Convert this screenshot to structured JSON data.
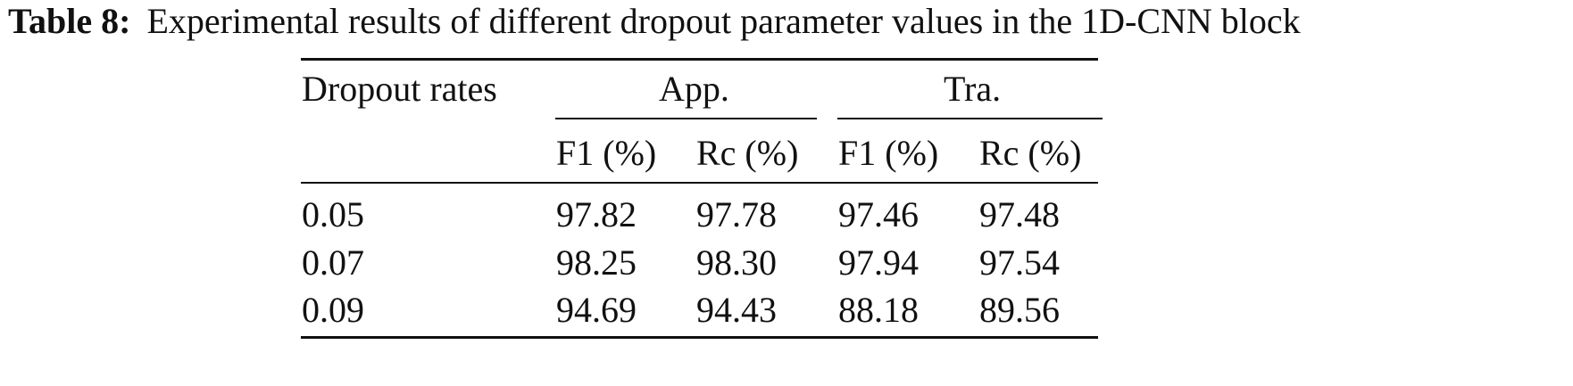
{
  "caption": {
    "label": "Table 8:",
    "text": "Experimental results of different dropout parameter values in the 1D-CNN block"
  },
  "table": {
    "row_header": "Dropout rates",
    "groups": [
      "App.",
      "Tra."
    ],
    "subheaders": [
      "F1 (%)",
      "Rc (%)",
      "F1 (%)",
      "Rc (%)"
    ],
    "rows": [
      {
        "rate": "0.05",
        "values": [
          "97.82",
          "97.78",
          "97.46",
          "97.48"
        ]
      },
      {
        "rate": "0.07",
        "values": [
          "98.25",
          "98.30",
          "97.94",
          "97.54"
        ]
      },
      {
        "rate": "0.09",
        "values": [
          "94.69",
          "94.43",
          "88.18",
          "89.56"
        ]
      }
    ]
  }
}
